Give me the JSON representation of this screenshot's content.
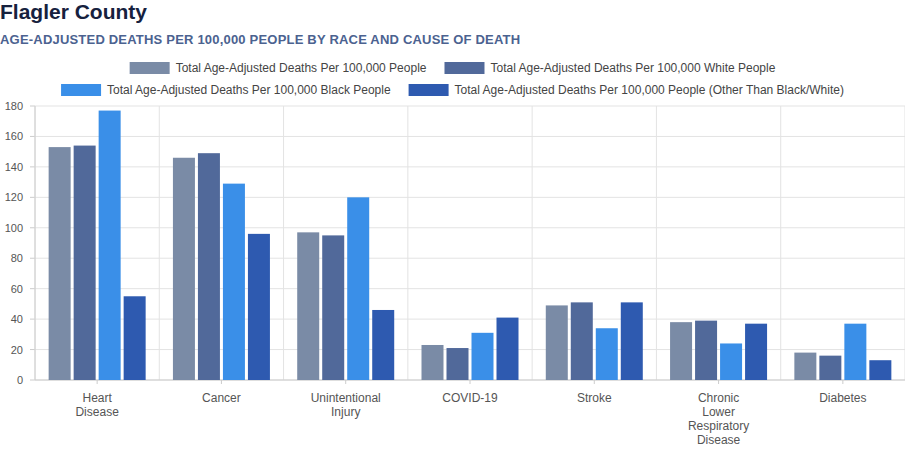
{
  "chart_data": {
    "type": "bar",
    "title": "Flagler County",
    "subtitle": "AGE-ADJUSTED DEATHS PER 100,000 PEOPLE BY RACE AND CAUSE OF DEATH",
    "categories": [
      "Heart Disease",
      "Cancer",
      "Unintentional Injury",
      "COVID-19",
      "Stroke",
      "Chronic Lower Respiratory Disease",
      "Diabetes"
    ],
    "series": [
      {
        "name": "Total Age-Adjusted Deaths Per 100,000 People",
        "color": "#7a8ba6",
        "values": [
          153,
          146,
          97,
          23,
          49,
          38,
          18
        ]
      },
      {
        "name": "Total Age-Adjusted Deaths Per 100,000 White People",
        "color": "#51699a",
        "values": [
          154,
          149,
          95,
          21,
          51,
          39,
          16
        ]
      },
      {
        "name": "Total Age-Adjusted Deaths Per 100,000 Black People",
        "color": "#3a8fe8",
        "values": [
          177,
          129,
          120,
          31,
          34,
          24,
          37
        ]
      },
      {
        "name": "Total Age-Adjusted Deaths Per 100,000 People (Other Than Black/White)",
        "color": "#2e5ab0",
        "values": [
          55,
          96,
          46,
          41,
          51,
          37,
          13
        ]
      }
    ],
    "ylim": [
      0,
      180
    ],
    "yticks": [
      0,
      20,
      40,
      60,
      80,
      100,
      120,
      140,
      160,
      180
    ],
    "grid": true,
    "legend": "top"
  }
}
